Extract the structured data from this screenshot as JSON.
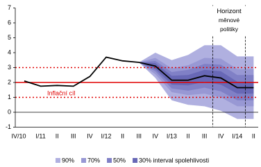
{
  "chart_data": {
    "type": "fan",
    "categories": [
      "IV/10",
      "I/11",
      "II",
      "III",
      "IV",
      "I/12",
      "II",
      "III",
      "IV",
      "I/13",
      "II",
      "III",
      "IV",
      "I/14",
      "II"
    ],
    "ylim": [
      -1,
      7
    ],
    "yticks": [
      -1,
      0,
      1,
      2,
      3,
      4,
      5,
      6,
      7
    ],
    "line": {
      "color": "#000000",
      "values": [
        2.1,
        1.75,
        1.8,
        1.75,
        2.4,
        3.7,
        3.45,
        3.35,
        3.1,
        2.15,
        2.15,
        2.45,
        2.3,
        1.65,
        1.65
      ]
    },
    "series": [
      {
        "name": "90%",
        "color": "#b0b0e0",
        "lower": [
          null,
          null,
          null,
          null,
          null,
          null,
          null,
          3.35,
          2.3,
          0.8,
          0.5,
          0.4,
          0.1,
          -0.45,
          -0.45
        ],
        "upper": [
          null,
          null,
          null,
          null,
          null,
          null,
          null,
          3.35,
          4.0,
          3.5,
          3.85,
          4.5,
          4.5,
          3.75,
          3.75
        ]
      },
      {
        "name": "70%",
        "color": "#9898d4",
        "lower": [
          null,
          null,
          null,
          null,
          null,
          null,
          null,
          3.35,
          2.55,
          1.35,
          1.15,
          1.25,
          1.0,
          0.4,
          0.4
        ],
        "upper": [
          null,
          null,
          null,
          null,
          null,
          null,
          null,
          3.35,
          3.65,
          2.95,
          3.15,
          3.65,
          3.6,
          2.9,
          2.9
        ]
      },
      {
        "name": "50%",
        "color": "#8080c6",
        "lower": [
          null,
          null,
          null,
          null,
          null,
          null,
          null,
          3.35,
          2.75,
          1.6,
          1.45,
          1.65,
          1.4,
          0.8,
          0.8
        ],
        "upper": [
          null,
          null,
          null,
          null,
          null,
          null,
          null,
          3.35,
          3.45,
          2.7,
          2.85,
          3.25,
          3.2,
          2.5,
          2.5
        ]
      },
      {
        "name": "30% interval spolehlivosti",
        "color": "#6868b6",
        "lower": [
          null,
          null,
          null,
          null,
          null,
          null,
          null,
          3.35,
          2.9,
          1.85,
          1.8,
          2.05,
          1.85,
          1.25,
          1.25
        ],
        "upper": [
          null,
          null,
          null,
          null,
          null,
          null,
          null,
          3.35,
          3.3,
          2.45,
          2.5,
          2.85,
          2.75,
          2.05,
          2.05
        ]
      }
    ],
    "target": {
      "label": "Inflační cíl",
      "value": 2,
      "band": [
        1,
        3
      ],
      "color": "#e00000"
    },
    "horizon": {
      "label": [
        "Horizont",
        "měnové",
        "politiky"
      ],
      "from": 11.5,
      "to": 13.5
    }
  }
}
